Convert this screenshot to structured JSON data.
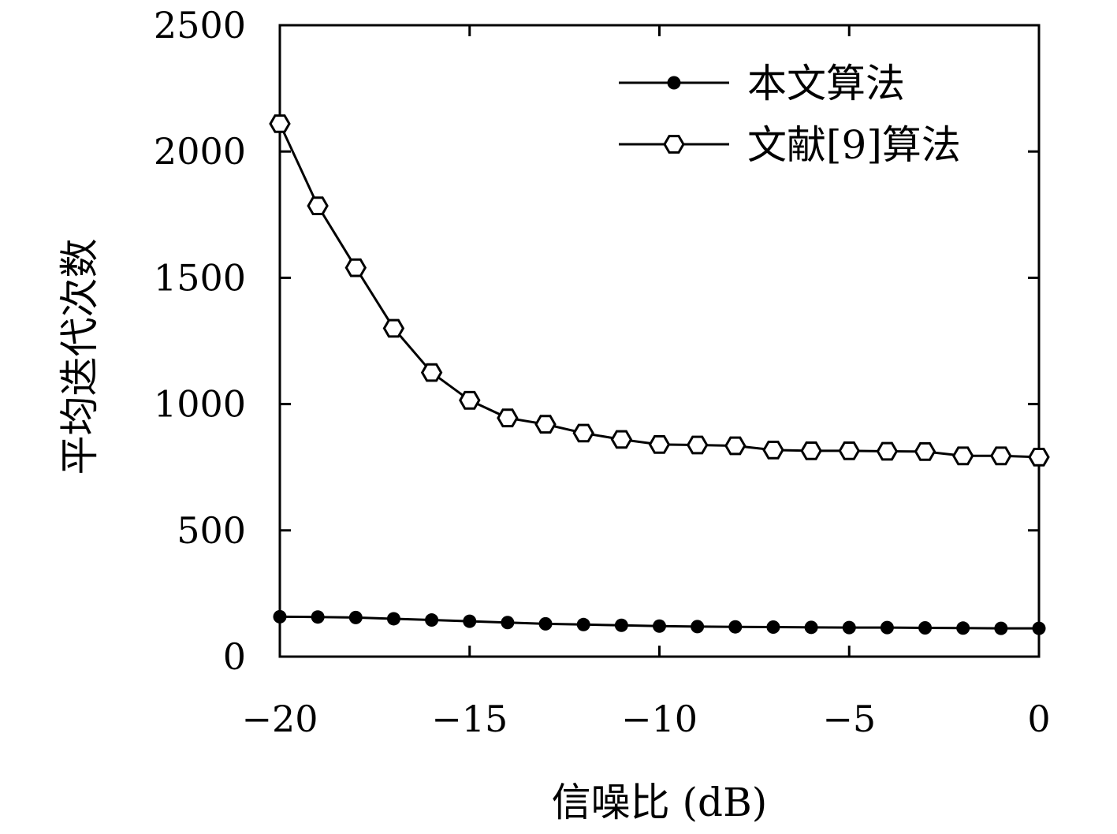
{
  "chart_data": {
    "type": "line",
    "title": "",
    "xlabel": "信噪比 (dB)",
    "ylabel": "平均迭代次数",
    "xlim": [
      -20,
      0
    ],
    "ylim": [
      0,
      2500
    ],
    "x_ticks": [
      -20,
      -15,
      -10,
      -5,
      0
    ],
    "x_tick_labels": [
      "−20",
      "−15",
      "−10",
      "−5",
      "0"
    ],
    "y_ticks": [
      0,
      500,
      1000,
      1500,
      2000,
      2500
    ],
    "y_tick_labels": [
      "0",
      "500",
      "1000",
      "1500",
      "2000",
      "2500"
    ],
    "grid": false,
    "legend_position": "top-right",
    "x": [
      -20,
      -19,
      -18,
      -17,
      -16,
      -15,
      -14,
      -13,
      -12,
      -11,
      -10,
      -9,
      -8,
      -7,
      -6,
      -5,
      -4,
      -3,
      -2,
      -1,
      0
    ],
    "series": [
      {
        "name": "本文算法",
        "marker": "filled-circle",
        "color": "#000000",
        "values": [
          158,
          157,
          155,
          150,
          145,
          140,
          135,
          130,
          127,
          124,
          121,
          119,
          118,
          117,
          116,
          115,
          115,
          114,
          113,
          112,
          112
        ]
      },
      {
        "name": "文献[9]算法",
        "marker": "open-hexagon",
        "color": "#000000",
        "values": [
          2110,
          1785,
          1540,
          1300,
          1125,
          1015,
          945,
          920,
          885,
          860,
          840,
          838,
          835,
          818,
          815,
          815,
          813,
          812,
          795,
          795,
          790
        ]
      }
    ]
  }
}
